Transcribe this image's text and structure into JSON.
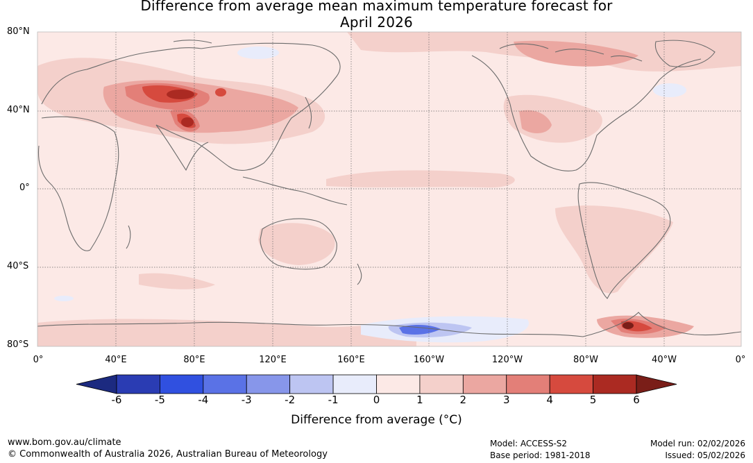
{
  "title": {
    "line1": "Difference from average mean maximum temperature forecast for",
    "line2": "April 2026"
  },
  "map": {
    "lat_labels": [
      "80°N",
      "40°N",
      "0°",
      "40°S",
      "80°S"
    ],
    "lon_labels": [
      "0°",
      "40°E",
      "80°E",
      "120°E",
      "160°E",
      "160°W",
      "120°W",
      "80°W",
      "40°W",
      "0°"
    ],
    "gridline_color": "#666666",
    "coastline_color": "#6b6b6b"
  },
  "colorbar": {
    "tick_labels": [
      "-6",
      "-5",
      "-4",
      "-3",
      "-2",
      "-1",
      "0",
      "1",
      "2",
      "3",
      "4",
      "5",
      "6"
    ],
    "colors": [
      "#1c2a80",
      "#2a3cb3",
      "#3050e0",
      "#5a72e6",
      "#8796ea",
      "#bdc5f2",
      "#e8ecfb",
      "#fce9e6",
      "#f4d0cb",
      "#eba7a1",
      "#e37f78",
      "#d64a3e",
      "#ab2a22",
      "#7a1e18"
    ],
    "label": "Difference from average (°C)"
  },
  "footer": {
    "website": "www.bom.gov.au/climate",
    "copyright": "© Commonwealth of Australia 2026, Australian Bureau of Meteorology",
    "model": "Model: ACCESS-S2",
    "base_period": "Base period: 1981-2018",
    "model_run": "Model run: 02/02/2026",
    "issued": "Issued: 05/02/2026"
  }
}
